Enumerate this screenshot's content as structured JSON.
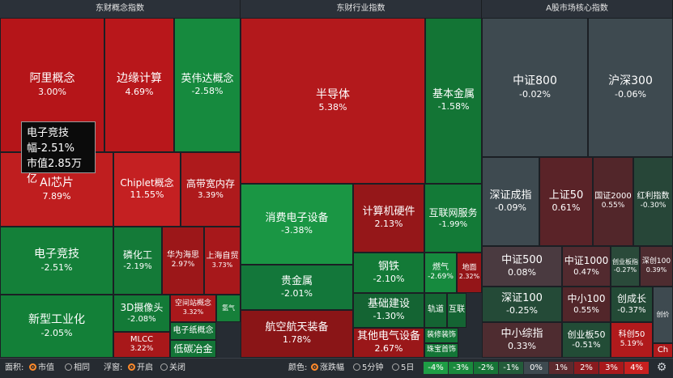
{
  "panels": [
    {
      "id": "concept",
      "title": "东财概念指数"
    },
    {
      "id": "industry",
      "title": "东财行业指数"
    },
    {
      "id": "market",
      "title": "A股市场核心指数"
    }
  ],
  "tooltip": {
    "name": "电子竞技",
    "change": "幅-2.51%",
    "cap": "市值2.85万亿"
  },
  "tiles": [
    {
      "slug": "ali",
      "name": "阿里概念",
      "value": "3.00%",
      "color": "#b51519"
    },
    {
      "slug": "edge-compute",
      "name": "边缘计算",
      "value": "4.69%",
      "color": "#b8171b"
    },
    {
      "slug": "nvidia",
      "name": "英伟达概念",
      "value": "-2.58%",
      "color": "#168a3e"
    },
    {
      "slug": "ai-chip",
      "name": "AI芯片",
      "value": "7.89%",
      "color": "#bf1e1f"
    },
    {
      "slug": "chiplet",
      "name": "Chiplet概念",
      "value": "11.55%",
      "color": "#c42022"
    },
    {
      "slug": "hbm",
      "name": "高带宽内存",
      "value": "3.39%",
      "color": "#ae1a1c"
    },
    {
      "slug": "esports",
      "name": "电子竞技",
      "value": "-2.51%",
      "color": "#148039"
    },
    {
      "slug": "indium-phosphide",
      "name": "磷化工",
      "value": "-2.19%",
      "color": "#147a38"
    },
    {
      "slug": "huawei-haisi",
      "name": "华为海思",
      "value": "2.97%",
      "color": "#9c1719"
    },
    {
      "slug": "sh-ftz",
      "name": "上海自贸",
      "value": "3.73%",
      "color": "#a7181b"
    },
    {
      "slug": "new-industrial",
      "name": "新型工业化",
      "value": "-2.05%",
      "color": "#138038"
    },
    {
      "slug": "camera-3d",
      "name": "3D摄像头",
      "value": "-2.08%",
      "color": "#137a37"
    },
    {
      "slug": "space-station",
      "name": "空间站概念",
      "value": "3.32%",
      "color": "#a9181b"
    },
    {
      "slug": "hydrogen",
      "name": "氢气",
      "value": "",
      "color": "#16803a"
    },
    {
      "slug": "mlcc",
      "name": "MLCC",
      "value": "3.22%",
      "color": "#a8181a"
    },
    {
      "slug": "e-paper",
      "name": "电子纸概念",
      "value": "",
      "color": "#137236"
    },
    {
      "slug": "low-carbon",
      "name": "低碳冶金",
      "value": "",
      "color": "#137537"
    },
    {
      "slug": "semiconductor",
      "name": "半导体",
      "value": "5.38%",
      "color": "#b3191c"
    },
    {
      "slug": "base-metal",
      "name": "基本金属",
      "value": "-1.58%",
      "color": "#137535"
    },
    {
      "slug": "consumer-electronics",
      "name": "消费电子设备",
      "value": "-3.38%",
      "color": "#1a9644"
    },
    {
      "slug": "computer-hardware",
      "name": "计算机硬件",
      "value": "2.13%",
      "color": "#951719"
    },
    {
      "slug": "internet-services",
      "name": "互联网服务",
      "value": "-1.99%",
      "color": "#137a37"
    },
    {
      "slug": "steel",
      "name": "钢铁",
      "value": "-2.10%",
      "color": "#137a37"
    },
    {
      "slug": "gas",
      "name": "燃气",
      "value": "-2.69%",
      "color": "#168a3e"
    },
    {
      "slug": "real-estate",
      "name": "地面",
      "value": "2.32%",
      "color": "#941518"
    },
    {
      "slug": "precious-metal",
      "name": "贵金属",
      "value": "-2.01%",
      "color": "#13773a"
    },
    {
      "slug": "infrastructure",
      "name": "基础建设",
      "value": "-1.30%",
      "color": "#146433"
    },
    {
      "slug": "rail",
      "name": "轨道",
      "value": "",
      "color": "#146433"
    },
    {
      "slug": "internet2",
      "name": "互联",
      "value": "",
      "color": "#146433"
    },
    {
      "slug": "aerospace",
      "name": "航空航天装备",
      "value": "1.78%",
      "color": "#8a1517"
    },
    {
      "slug": "other-electrical",
      "name": "其他电气设备",
      "value": "2.67%",
      "color": "#9a1719"
    },
    {
      "slug": "decoration",
      "name": "装修装饰",
      "value": "",
      "color": "#137536"
    },
    {
      "slug": "jewelry",
      "name": "珠宝首饰",
      "value": "",
      "color": "#137536"
    },
    {
      "slug": "csi800",
      "name": "中证800",
      "value": "-0.02%",
      "color": "#3e4a50"
    },
    {
      "slug": "hs300",
      "name": "沪深300",
      "value": "-0.06%",
      "color": "#3e4a50"
    },
    {
      "slug": "szcz",
      "name": "深证成指",
      "value": "-0.09%",
      "color": "#3e4a50"
    },
    {
      "slug": "sz50",
      "name": "上证50",
      "value": "0.61%",
      "color": "#5a2328"
    },
    {
      "slug": "csi2000",
      "name": "国证2000",
      "value": "0.55%",
      "color": "#52262a"
    },
    {
      "slug": "dividend",
      "name": "红利指数",
      "value": "-0.30%",
      "color": "#274638"
    },
    {
      "slug": "csi500",
      "name": "中证500",
      "value": "0.08%",
      "color": "#4a3a40"
    },
    {
      "slug": "csi1000",
      "name": "中证1000",
      "value": "0.47%",
      "color": "#522a2f"
    },
    {
      "slug": "chinext-idx",
      "name": "创业板指",
      "value": "-0.27%",
      "color": "#2a4a3a"
    },
    {
      "slug": "sz100",
      "name": "深创100",
      "value": "0.39%",
      "color": "#4e2c30"
    },
    {
      "slug": "sz100b",
      "name": "深证100",
      "value": "-0.25%",
      "color": "#244a37"
    },
    {
      "slug": "smb100",
      "name": "中小100",
      "value": "0.55%",
      "color": "#52262a"
    },
    {
      "slug": "chinext-growth",
      "name": "创成长",
      "value": "-0.37%",
      "color": "#234a36"
    },
    {
      "slug": "smb-composite",
      "name": "中小综指",
      "value": "0.33%",
      "color": "#4e2c30"
    },
    {
      "slug": "chinext50",
      "name": "创业板50",
      "value": "-0.51%",
      "color": "#224c36"
    },
    {
      "slug": "star50",
      "name": "科创50",
      "value": "5.19%",
      "color": "#b01a1c"
    },
    {
      "slug": "chinext",
      "name": "创价",
      "value": "",
      "color": "#3e4a50"
    },
    {
      "slug": "ch",
      "name": "Ch",
      "value": "",
      "color": "#b01a1c"
    }
  ],
  "bottombar": {
    "area_label": "面积:",
    "area_options": [
      "市值",
      "相同"
    ],
    "float_label": "浮窗:",
    "float_options": [
      "开启",
      "关闭"
    ],
    "color_label": "颜色:",
    "color_options": [
      "涨跌幅",
      "5分钟",
      "5日"
    ]
  },
  "legend": [
    {
      "label": "-4%",
      "color": "#1e9e45"
    },
    {
      "label": "-3%",
      "color": "#1a8a3d"
    },
    {
      "label": "-2%",
      "color": "#167536"
    },
    {
      "label": "-1%",
      "color": "#235c3a"
    },
    {
      "label": "0%",
      "color": "#3e4a50"
    },
    {
      "label": "1%",
      "color": "#5c2a2e"
    },
    {
      "label": "2%",
      "color": "#8a1b1f"
    },
    {
      "label": "3%",
      "color": "#a8191c"
    },
    {
      "label": "4%",
      "color": "#c8201f"
    }
  ],
  "icons": {
    "settings": "gear-icon"
  }
}
